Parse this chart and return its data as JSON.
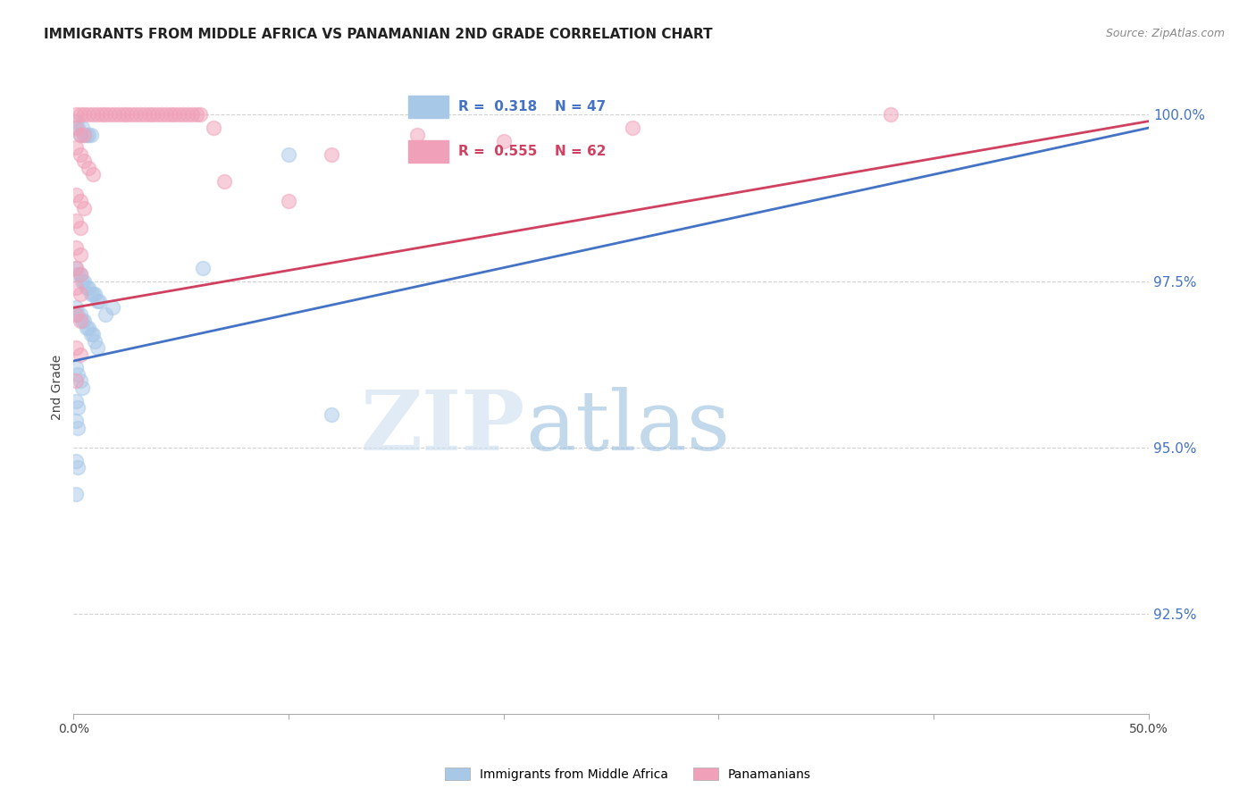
{
  "title": "IMMIGRANTS FROM MIDDLE AFRICA VS PANAMANIAN 2ND GRADE CORRELATION CHART",
  "source": "Source: ZipAtlas.com",
  "ylabel": "2nd Grade",
  "xlim": [
    0.0,
    0.5
  ],
  "ylim": [
    0.91,
    1.008
  ],
  "xtick_labels": [
    "0.0%",
    "",
    "",
    "",
    "",
    "50.0%"
  ],
  "xtick_values": [
    0.0,
    0.1,
    0.2,
    0.3,
    0.4,
    0.5
  ],
  "ytick_labels": [
    "92.5%",
    "95.0%",
    "97.5%",
    "100.0%"
  ],
  "ytick_values": [
    0.925,
    0.95,
    0.975,
    1.0
  ],
  "legend_R1": "R =  0.318",
  "legend_N1": "N = 47",
  "legend_R2": "R =  0.555",
  "legend_N2": "N = 62",
  "blue_color": "#A8C8E8",
  "pink_color": "#F0A0B8",
  "blue_line_color": "#4472C4",
  "pink_line_color": "#D04060",
  "blue_scatter": [
    [
      0.001,
      0.999
    ],
    [
      0.002,
      0.998
    ],
    [
      0.003,
      0.997
    ],
    [
      0.004,
      0.998
    ],
    [
      0.005,
      0.997
    ],
    [
      0.006,
      0.997
    ],
    [
      0.007,
      0.997
    ],
    [
      0.008,
      0.997
    ],
    [
      0.001,
      0.977
    ],
    [
      0.002,
      0.976
    ],
    [
      0.003,
      0.976
    ],
    [
      0.004,
      0.975
    ],
    [
      0.005,
      0.975
    ],
    [
      0.006,
      0.974
    ],
    [
      0.007,
      0.974
    ],
    [
      0.008,
      0.973
    ],
    [
      0.009,
      0.973
    ],
    [
      0.01,
      0.973
    ],
    [
      0.011,
      0.972
    ],
    [
      0.012,
      0.972
    ],
    [
      0.001,
      0.971
    ],
    [
      0.002,
      0.97
    ],
    [
      0.003,
      0.97
    ],
    [
      0.004,
      0.969
    ],
    [
      0.005,
      0.969
    ],
    [
      0.006,
      0.968
    ],
    [
      0.007,
      0.968
    ],
    [
      0.008,
      0.967
    ],
    [
      0.009,
      0.967
    ],
    [
      0.01,
      0.966
    ],
    [
      0.011,
      0.965
    ],
    [
      0.015,
      0.97
    ],
    [
      0.018,
      0.971
    ],
    [
      0.001,
      0.962
    ],
    [
      0.002,
      0.961
    ],
    [
      0.003,
      0.96
    ],
    [
      0.004,
      0.959
    ],
    [
      0.001,
      0.957
    ],
    [
      0.002,
      0.956
    ],
    [
      0.001,
      0.954
    ],
    [
      0.002,
      0.953
    ],
    [
      0.001,
      0.948
    ],
    [
      0.002,
      0.947
    ],
    [
      0.001,
      0.943
    ],
    [
      0.06,
      0.977
    ],
    [
      0.1,
      0.994
    ],
    [
      0.12,
      0.955
    ]
  ],
  "pink_scatter": [
    [
      0.001,
      1.0
    ],
    [
      0.003,
      1.0
    ],
    [
      0.005,
      1.0
    ],
    [
      0.007,
      1.0
    ],
    [
      0.009,
      1.0
    ],
    [
      0.011,
      1.0
    ],
    [
      0.013,
      1.0
    ],
    [
      0.015,
      1.0
    ],
    [
      0.017,
      1.0
    ],
    [
      0.019,
      1.0
    ],
    [
      0.021,
      1.0
    ],
    [
      0.023,
      1.0
    ],
    [
      0.025,
      1.0
    ],
    [
      0.027,
      1.0
    ],
    [
      0.029,
      1.0
    ],
    [
      0.031,
      1.0
    ],
    [
      0.033,
      1.0
    ],
    [
      0.035,
      1.0
    ],
    [
      0.037,
      1.0
    ],
    [
      0.039,
      1.0
    ],
    [
      0.041,
      1.0
    ],
    [
      0.043,
      1.0
    ],
    [
      0.045,
      1.0
    ],
    [
      0.047,
      1.0
    ],
    [
      0.049,
      1.0
    ],
    [
      0.051,
      1.0
    ],
    [
      0.053,
      1.0
    ],
    [
      0.055,
      1.0
    ],
    [
      0.057,
      1.0
    ],
    [
      0.059,
      1.0
    ],
    [
      0.001,
      0.998
    ],
    [
      0.003,
      0.997
    ],
    [
      0.005,
      0.997
    ],
    [
      0.001,
      0.995
    ],
    [
      0.003,
      0.994
    ],
    [
      0.005,
      0.993
    ],
    [
      0.007,
      0.992
    ],
    [
      0.009,
      0.991
    ],
    [
      0.001,
      0.988
    ],
    [
      0.003,
      0.987
    ],
    [
      0.005,
      0.986
    ],
    [
      0.001,
      0.984
    ],
    [
      0.003,
      0.983
    ],
    [
      0.001,
      0.98
    ],
    [
      0.003,
      0.979
    ],
    [
      0.001,
      0.977
    ],
    [
      0.003,
      0.976
    ],
    [
      0.001,
      0.974
    ],
    [
      0.003,
      0.973
    ],
    [
      0.065,
      0.998
    ],
    [
      0.12,
      0.994
    ],
    [
      0.16,
      0.997
    ],
    [
      0.2,
      0.996
    ],
    [
      0.26,
      0.998
    ],
    [
      0.07,
      0.99
    ],
    [
      0.1,
      0.987
    ],
    [
      0.38,
      1.0
    ],
    [
      0.001,
      0.97
    ],
    [
      0.003,
      0.969
    ],
    [
      0.001,
      0.965
    ],
    [
      0.003,
      0.964
    ],
    [
      0.001,
      0.96
    ]
  ],
  "blue_trend": [
    0.0,
    0.5,
    0.963,
    0.998
  ],
  "pink_trend": [
    0.0,
    0.5,
    0.971,
    0.999
  ]
}
